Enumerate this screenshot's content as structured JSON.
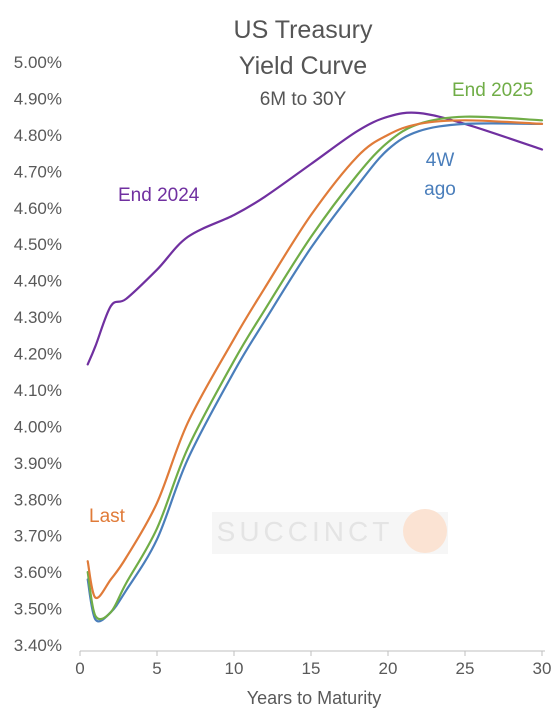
{
  "chart_data": {
    "type": "line",
    "title_lines": [
      "US Treasury",
      "Yield Curve"
    ],
    "subtitle": "6M to 30Y",
    "xlabel": "Years to Maturity",
    "ylabel": "",
    "xlim": [
      0,
      30
    ],
    "ylim": [
      3.4,
      5.0
    ],
    "x_ticks": [
      0,
      5,
      10,
      15,
      20,
      25,
      30
    ],
    "x_tick_labels": [
      "0",
      "5",
      "10",
      "15",
      "20",
      "25",
      "30"
    ],
    "y_ticks": [
      3.4,
      3.5,
      3.6,
      3.7,
      3.8,
      3.9,
      4.0,
      4.1,
      4.2,
      4.3,
      4.4,
      4.5,
      4.6,
      4.7,
      4.8,
      4.9,
      5.0
    ],
    "y_tick_labels": [
      "3.40%",
      "3.50%",
      "3.60%",
      "3.70%",
      "3.80%",
      "3.90%",
      "4.00%",
      "4.10%",
      "4.20%",
      "4.30%",
      "4.40%",
      "4.50%",
      "4.60%",
      "4.70%",
      "4.80%",
      "4.90%",
      "5.00%"
    ],
    "grid": false,
    "watermark": "SUCCINCT",
    "series": [
      {
        "name": "End 2024",
        "label": "End 2024",
        "color": "#7030a0",
        "x": [
          0.5,
          1,
          2,
          3,
          5,
          7,
          10,
          12,
          15,
          18,
          20,
          22,
          25,
          30
        ],
        "values": [
          4.17,
          4.22,
          4.33,
          4.35,
          4.43,
          4.52,
          4.58,
          4.63,
          4.72,
          4.81,
          4.85,
          4.86,
          4.83,
          4.76
        ]
      },
      {
        "name": "Last",
        "label": "Last",
        "color": "#e07b39",
        "x": [
          0.5,
          1,
          2,
          3,
          5,
          7,
          10,
          12,
          15,
          18,
          20,
          22,
          25,
          30
        ],
        "values": [
          3.63,
          3.53,
          3.58,
          3.64,
          3.79,
          4.01,
          4.24,
          4.38,
          4.58,
          4.74,
          4.8,
          4.83,
          4.84,
          4.83
        ]
      },
      {
        "name": "4W ago",
        "label_lines": [
          "4W",
          "ago"
        ],
        "color": "#4a7ebb",
        "x": [
          0.5,
          1,
          2,
          3,
          5,
          7,
          10,
          12,
          15,
          18,
          20,
          22,
          25,
          30
        ],
        "values": [
          3.58,
          3.47,
          3.49,
          3.55,
          3.69,
          3.91,
          4.15,
          4.29,
          4.49,
          4.66,
          4.76,
          4.81,
          4.83,
          4.83
        ]
      },
      {
        "name": "End 2025",
        "label": "End 2025",
        "color": "#70ad47",
        "x": [
          0.5,
          1,
          2,
          3,
          5,
          7,
          10,
          12,
          15,
          18,
          20,
          22,
          25,
          30
        ],
        "values": [
          3.6,
          3.48,
          3.49,
          3.57,
          3.72,
          3.94,
          4.18,
          4.32,
          4.52,
          4.69,
          4.78,
          4.83,
          4.85,
          4.84
        ]
      }
    ]
  }
}
